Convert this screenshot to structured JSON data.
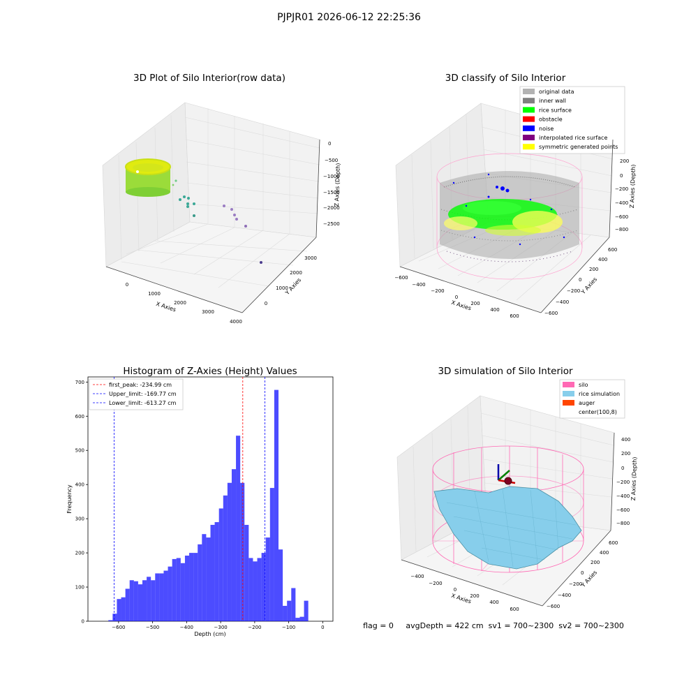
{
  "suptitle": "PJPJR01 2026-06-12 22:25:36",
  "panels": {
    "raw": {
      "title": "3D Plot of Silo Interior(row data)",
      "xlabel": "X Axies",
      "ylabel": "Y Axies",
      "zlabel": "Z Axies (Depth)",
      "xticks": [
        "0",
        "1000",
        "2000",
        "3000",
        "4000"
      ],
      "yticks": [
        "0",
        "1000",
        "2000",
        "3000"
      ],
      "zticks": [
        "0",
        "−500",
        "−1000",
        "−1500",
        "−2000",
        "−2500"
      ]
    },
    "classify": {
      "title": "3D classify of Silo Interior",
      "xlabel": "X Axies",
      "ylabel": "Y Axies",
      "zlabel": "Z Axies (Depth)",
      "xticks": [
        "−600",
        "−400",
        "−200",
        "0",
        "200",
        "400",
        "600"
      ],
      "yticks": [
        "−600",
        "−400",
        "−200",
        "0",
        "200",
        "400",
        "600"
      ],
      "zticks": [
        "200",
        "0",
        "−200",
        "−400",
        "−600",
        "−800"
      ],
      "legend": [
        {
          "label": "original data",
          "color": "#b3b3b3"
        },
        {
          "label": "inner wall",
          "color": "#808080"
        },
        {
          "label": "rice surface",
          "color": "#00ff00"
        },
        {
          "label": "obstacle",
          "color": "#ff0000"
        },
        {
          "label": "noise",
          "color": "#0000ff"
        },
        {
          "label": "interpolated rice surface",
          "color": "#800080"
        },
        {
          "label": "symmetric generated points",
          "color": "#ffff00"
        }
      ]
    },
    "simulation": {
      "title": "3D simulation of Silo Interior",
      "xlabel": "X Axies",
      "ylabel": "Y Axies",
      "zlabel": "Z Axies (Depth)",
      "xticks": [
        "−400",
        "−200",
        "0",
        "200",
        "400",
        "600"
      ],
      "yticks": [
        "−600",
        "−400",
        "−200",
        "0",
        "200",
        "400",
        "600"
      ],
      "zticks": [
        "400",
        "200",
        "0",
        "−200",
        "−400",
        "−600",
        "−800"
      ],
      "legend": [
        {
          "label": "silo",
          "color": "#ff69b4"
        },
        {
          "label": "rice simulation",
          "color": "#87ceeb"
        },
        {
          "label": "auger",
          "color": "#ff4500"
        },
        {
          "label": "center(100,8)",
          "color": ""
        }
      ],
      "status": "flag = 0     avgDepth = 422 cm  sv1 = 700~2300  sv2 = 700~2300"
    }
  },
  "chart_data": [
    {
      "type": "scatter",
      "title": "3D Plot of Silo Interior(row data)",
      "xlabel": "X Axies",
      "ylabel": "Y Axies",
      "zlabel": "Z Axies (Depth)",
      "zlim": [
        -2800,
        100
      ]
    },
    {
      "type": "scatter",
      "title": "3D classify of Silo Interior",
      "xlabel": "X Axies",
      "ylabel": "Y Axies",
      "zlabel": "Z Axies (Depth)",
      "legend": [
        "original data",
        "inner wall",
        "rice surface",
        "obstacle",
        "noise",
        "interpolated rice surface",
        "symmetric generated points"
      ],
      "legend_position": "upper right"
    },
    {
      "type": "bar",
      "title": "Histogram of Z-Axies (Height) Values",
      "xlabel": "Depth (cm)",
      "ylabel": "Frequency",
      "xlim": [
        -690,
        30
      ],
      "ylim": [
        0,
        715
      ],
      "xticks": [
        -600,
        -500,
        -400,
        -300,
        -200,
        -100,
        0
      ],
      "yticks": [
        0,
        100,
        200,
        300,
        400,
        500,
        600,
        700
      ],
      "bin_width": 12.5,
      "bin_start": -630,
      "values": [
        3,
        22,
        65,
        70,
        95,
        120,
        117,
        108,
        120,
        130,
        120,
        140,
        140,
        148,
        160,
        182,
        185,
        170,
        192,
        200,
        200,
        225,
        255,
        245,
        282,
        290,
        330,
        368,
        405,
        445,
        543,
        405,
        282,
        185,
        175,
        185,
        200,
        245,
        390,
        677,
        210,
        45,
        60,
        97,
        10,
        13,
        60
      ],
      "color": "#0000ff",
      "vlines": [
        {
          "x": -234.99,
          "label": "first_peak: -234.99 cm",
          "color": "#ff0000"
        },
        {
          "x": -169.77,
          "label": "Upper_limit: -169.77 cm",
          "color": "#0000ff"
        },
        {
          "x": -613.27,
          "label": "Lower_limit: -613.27 cm",
          "color": "#0000ff"
        }
      ],
      "legend_position": "upper left"
    },
    {
      "type": "surface",
      "title": "3D simulation of Silo Interior",
      "xlabel": "X Axies",
      "ylabel": "Y Axies",
      "zlabel": "Z Axies (Depth)",
      "legend": [
        "silo",
        "rice simulation",
        "auger",
        "center(100,8)"
      ],
      "legend_position": "upper right"
    }
  ]
}
